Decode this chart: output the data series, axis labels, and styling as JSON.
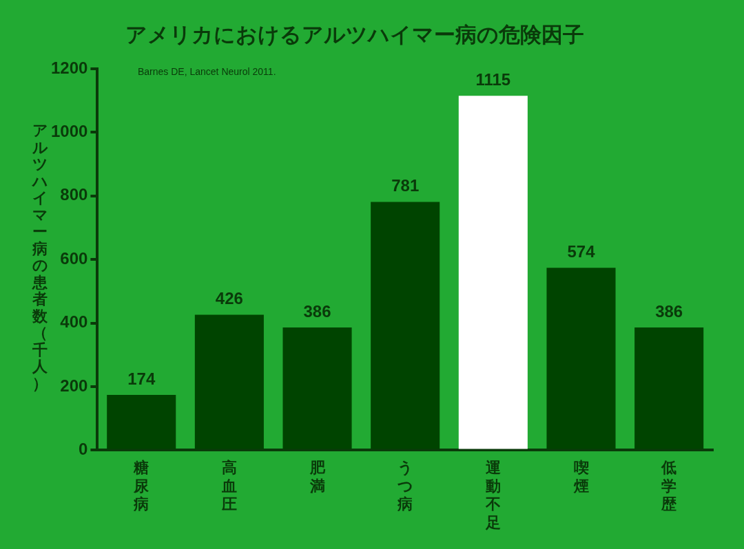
{
  "chart_data": {
    "type": "bar",
    "title": "アメリカにおけるアルツハイマー病の危険因子",
    "ylabel": "アルツハイマー病の患者数（千人）",
    "annotations": [
      "Barnes DE, Lancet Neurol 2011."
    ],
    "categories": [
      "糖尿病",
      "高血圧",
      "肥満",
      "うつ病",
      "運動不足",
      "喫煙",
      "低学歴"
    ],
    "values": [
      174,
      426,
      386,
      781,
      1115,
      574,
      386
    ],
    "colors": [
      "#004400",
      "#004400",
      "#004400",
      "#004400",
      "#ffffff",
      "#004400",
      "#004400"
    ],
    "ylim": [
      0,
      1200
    ],
    "yticks": [
      0,
      200,
      400,
      600,
      800,
      1000,
      1200
    ],
    "grid": false,
    "legend": false,
    "data_labels": true
  }
}
